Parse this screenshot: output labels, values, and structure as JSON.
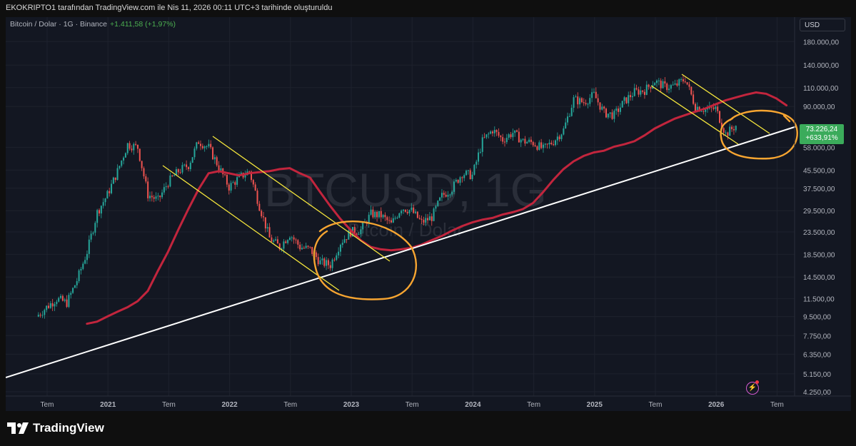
{
  "header": {
    "attribution": "EKOKRIPTO1 tarafından TradingView.com ile Nis 11, 2026 00:11 UTC+3 tarihinde oluşturuldu"
  },
  "symbol": {
    "name": "Bitcoin / Dolar · 1G · Binance",
    "change": "+1.411,58 (+1,97%)"
  },
  "watermark": {
    "title": "BTCUSD, 1G",
    "subtitle": "Bitcoin / Dolar"
  },
  "currency": "USD",
  "last_price": {
    "value": "73.226,24",
    "change": "+633,91%"
  },
  "footer": {
    "logo_text": "TradingView"
  },
  "colors": {
    "background": "#131722",
    "up": "#26a69a",
    "down": "#ef5350",
    "ma": "#c2253d",
    "channel": "#f5e63c",
    "trendline": "#ffffff",
    "circle": "#f7a531",
    "badge": "#3bab5b"
  },
  "chart_data": {
    "type": "line",
    "scale": "log",
    "series_name": "BTCUSD",
    "x": [
      "2020-07",
      "2020-08",
      "2020-09",
      "2020-10",
      "2020-11",
      "2020-12",
      "2021-01",
      "2021-02",
      "2021-03",
      "2021-04",
      "2021-05",
      "2021-06",
      "2021-07",
      "2021-08",
      "2021-09",
      "2021-10",
      "2021-11",
      "2021-12",
      "2022-01",
      "2022-02",
      "2022-03",
      "2022-04",
      "2022-05",
      "2022-06",
      "2022-07",
      "2022-08",
      "2022-09",
      "2022-10",
      "2022-11",
      "2022-12",
      "2023-01",
      "2023-02",
      "2023-03",
      "2023-04",
      "2023-05",
      "2023-06",
      "2023-07",
      "2023-08",
      "2023-09",
      "2023-10",
      "2023-11",
      "2023-12",
      "2024-01",
      "2024-02",
      "2024-03",
      "2024-04",
      "2024-05",
      "2024-06",
      "2024-07",
      "2024-08",
      "2024-09",
      "2024-10",
      "2024-11",
      "2024-12",
      "2025-01",
      "2025-02",
      "2025-03",
      "2025-04",
      "2025-05",
      "2025-06",
      "2025-07",
      "2025-08",
      "2025-09",
      "2025-10",
      "2025-11",
      "2025-12",
      "2026-01",
      "2026-02",
      "2026-03",
      "2026-04"
    ],
    "values": [
      9500,
      10500,
      11500,
      11000,
      14000,
      19000,
      29000,
      35000,
      45000,
      60000,
      58000,
      35000,
      33000,
      40000,
      45000,
      48000,
      62000,
      58000,
      47000,
      38000,
      42000,
      45000,
      31000,
      22000,
      20000,
      23000,
      20000,
      19500,
      17000,
      16500,
      21000,
      23500,
      24000,
      28500,
      28000,
      25500,
      30500,
      29500,
      26000,
      27500,
      34500,
      37500,
      44000,
      43000,
      62000,
      70000,
      63000,
      68000,
      62000,
      61000,
      57000,
      62000,
      70000,
      97000,
      94000,
      102000,
      84000,
      82000,
      95000,
      105000,
      107000,
      118000,
      111000,
      112000,
      121000,
      90000,
      87000,
      88000,
      67000,
      73226
    ],
    "moving_average": [
      8800,
      9000,
      9500,
      10000,
      10500,
      11200,
      12500,
      15500,
      19000,
      24000,
      30000,
      37000,
      44000,
      45000,
      44000,
      43000,
      44000,
      44500,
      45000,
      46000,
      46500,
      44000,
      42000,
      36000,
      31000,
      27000,
      24000,
      21500,
      20000,
      19500,
      19300,
      19500,
      19800,
      20500,
      21500,
      22500,
      23800,
      25000,
      26000,
      26800,
      27300,
      28300,
      29000,
      30000,
      32000,
      36000,
      41000,
      46000,
      50000,
      53000,
      55000,
      56000,
      58500,
      60000,
      62000,
      66000,
      71000,
      75000,
      79000,
      82000,
      85000,
      88000,
      92000,
      96000,
      99000,
      102000,
      104500,
      103000,
      98000,
      91000
    ],
    "ylim": [
      4250,
      220000
    ],
    "y_ticks": [
      "180.000,00",
      "140.000,00",
      "110.000,00",
      "90.000,00",
      "58.000,00",
      "45.500,00",
      "37.500,00",
      "29.500,00",
      "23.500,00",
      "18.500,00",
      "14.500,00",
      "11.500,00",
      "9.500,00",
      "7.750,00",
      "6.350,00",
      "5.150,00",
      "4.250,00"
    ],
    "x_ticks": [
      "Tem",
      "2021",
      "Tem",
      "2022",
      "Tem",
      "2023",
      "Tem",
      "2024",
      "Tem",
      "2025",
      "Tem",
      "2026",
      "Tem"
    ],
    "grid": true,
    "legend": "none"
  }
}
